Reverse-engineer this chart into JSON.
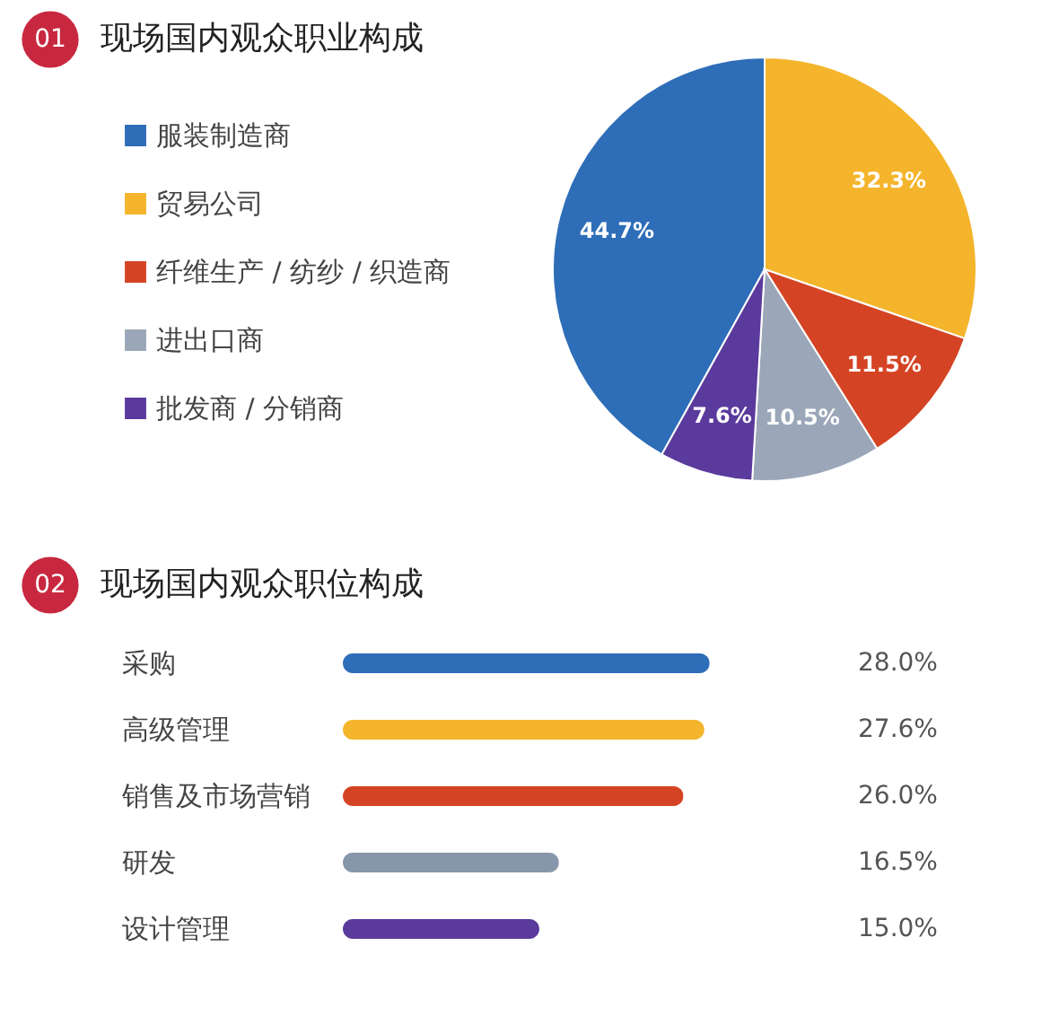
{
  "chart_data": [
    {
      "type": "pie",
      "title": "现场国内观众职业构成",
      "annotations": [
        "01"
      ],
      "legend": "left",
      "categories": [
        "服装制造商",
        "贸易公司",
        "纤维生产 / 纺纱 / 织造商",
        "进出口商",
        "批发商 / 分销商"
      ],
      "values": [
        44.7,
        32.3,
        11.5,
        10.5,
        7.6
      ],
      "colors": [
        "#2e6db8",
        "#f4b52c",
        "#d44424",
        "#9ba7b8",
        "#5a3a9c"
      ],
      "value_labels": [
        "44.7%",
        "32.3%",
        "11.5%",
        "10.5%",
        "7.6%"
      ]
    },
    {
      "type": "bar",
      "orientation": "horizontal",
      "title": "现场国内观众职位构成",
      "annotations": [
        "02"
      ],
      "categories": [
        "采购",
        "高级管理",
        "销售及市场营销",
        "研发",
        "设计管理"
      ],
      "values": [
        28.0,
        27.6,
        26.0,
        16.5,
        15.0
      ],
      "colors": [
        "#2e6db8",
        "#f4b52c",
        "#d44424",
        "#8797ab",
        "#5a3a9c"
      ],
      "value_labels": [
        "28.0%",
        "27.6%",
        "26.0%",
        "16.5%",
        "15.0%"
      ]
    }
  ]
}
